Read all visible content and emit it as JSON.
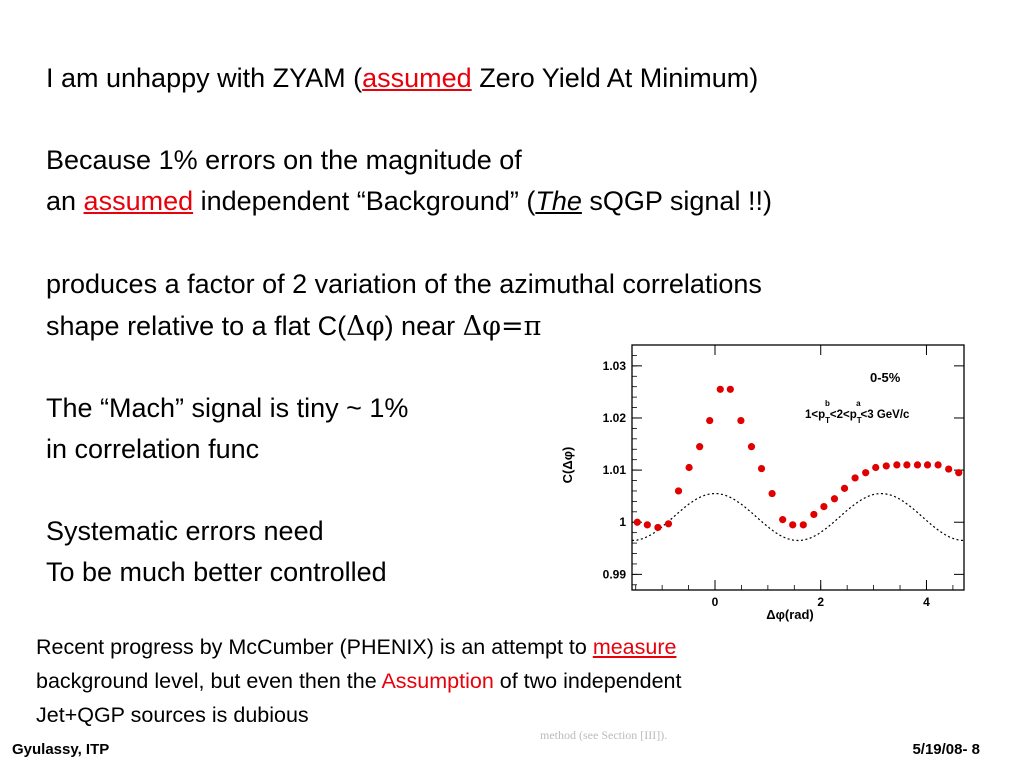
{
  "slide": {
    "l1": {
      "a": "I am unhappy with ZYAM (",
      "red": "assumed",
      "b": " Zero Yield At Minimum)"
    },
    "l2": "Because 1% errors on the magnitude of",
    "l3": {
      "a": "an ",
      "red": "assumed",
      "b": " independent “Background” (",
      "ital": "The",
      "c": " sQGP signal !!)"
    },
    "l4": "produces a factor of 2 variation of the azimuthal correlations",
    "l5": {
      "a": "shape relative to a flat C(",
      "sym": "Δφ",
      "b": ")  near  ",
      "sym2": "Δφ=π"
    },
    "l6": "The “Mach” signal is tiny ~ 1%",
    "l7": "in correlation func",
    "l8": "Systematic errors need",
    "l9": "To be much better controlled"
  },
  "note": {
    "l1a": "Recent progress by McCumber (PHENIX) is an attempt to ",
    "l1red": "measure",
    "l2a": "background level, but even then the ",
    "l2red": "Assumption",
    "l2b": " of two independent",
    "l3": "Jet+QGP sources is dubious"
  },
  "ghost_text": "method (see Section [III]).",
  "footer": {
    "left": "Gyulassy, ITP",
    "right": "5/19/08-   8"
  },
  "chart_data": {
    "type": "scatter",
    "title": "0-5%",
    "annotation": "1<p_T^b<2<p_T^a<3 GeV/c",
    "xlabel": "Δφ(rad)",
    "ylabel": "C(Δφ)",
    "xlim": [
      -1.57,
      4.71
    ],
    "ylim": [
      0.987,
      1.034
    ],
    "xticks": [
      "0",
      "2",
      "4"
    ],
    "yticks": [
      "0.99",
      "1",
      "1.01",
      "1.02",
      "1.03"
    ],
    "series": [
      {
        "marker_color": "#e00000",
        "x": [
          -1.47,
          -1.28,
          -1.08,
          -0.88,
          -0.69,
          -0.49,
          -0.29,
          -0.1,
          0.1,
          0.29,
          0.49,
          0.69,
          0.88,
          1.08,
          1.28,
          1.47,
          1.67,
          1.87,
          2.06,
          2.26,
          2.45,
          2.65,
          2.85,
          3.04,
          3.24,
          3.44,
          3.63,
          3.83,
          4.02,
          4.22,
          4.42,
          4.61
        ],
        "y": [
          1.0,
          0.9995,
          0.999,
          0.9997,
          1.006,
          1.0105,
          1.0145,
          1.0195,
          1.0255,
          1.0255,
          1.0195,
          1.0145,
          1.0103,
          1.0055,
          1.0005,
          0.9995,
          0.9995,
          1.0015,
          1.003,
          1.0045,
          1.0065,
          1.0085,
          1.0095,
          1.0105,
          1.0108,
          1.011,
          1.011,
          1.011,
          1.011,
          1.011,
          1.0102,
          1.0095
        ]
      }
    ],
    "background_curve": {
      "style": "dotted",
      "color": "#000000",
      "form": "peaks near 0 and pi, minima near +/-pi/2",
      "range": [
        0.9965,
        1.0055
      ]
    }
  }
}
